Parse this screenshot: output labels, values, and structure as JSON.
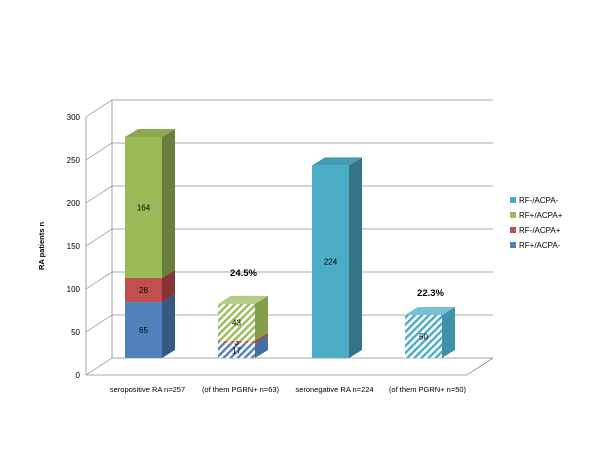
{
  "chart_data": {
    "type": "bar",
    "stacked": true,
    "style": "3d",
    "title": "",
    "xlabel": "",
    "ylabel": "RA patients  n",
    "ylim": [
      0,
      300
    ],
    "yticks": [
      "0",
      "50",
      "100",
      "150",
      "200",
      "250",
      "300"
    ],
    "grid": true,
    "legend_position": "right",
    "categories": [
      "seropositive RA n=257",
      "(of them PGRN+ n=63)",
      "seronegative RA n=224",
      "(of them PGRN+ n=50)"
    ],
    "series": [
      {
        "name": "RF+/ACPA-",
        "color": "#4f81bd",
        "values": [
          65,
          17,
          0,
          0
        ],
        "labels": [
          "65",
          "17",
          "",
          ""
        ]
      },
      {
        "name": "RF-/ACPA+",
        "color": "#c0504d",
        "values": [
          28,
          3,
          0,
          0
        ],
        "labels": [
          "28",
          "3",
          "",
          ""
        ]
      },
      {
        "name": "RF+/ACPA+",
        "color": "#9bbb59",
        "values": [
          164,
          43,
          0,
          0
        ],
        "labels": [
          "164",
          "43",
          "",
          ""
        ]
      },
      {
        "name": "RF-/ACPA-",
        "color": "#4bacc6",
        "values": [
          0,
          0,
          224,
          50
        ],
        "labels": [
          "",
          "",
          "224",
          "50"
        ]
      }
    ],
    "hatched_categories": [
      1,
      3
    ],
    "annotations": [
      {
        "category": 1,
        "text": "24.5%"
      },
      {
        "category": 3,
        "text": "22.3%"
      }
    ],
    "legend": [
      "RF-/ACPA-",
      "RF+/ACPA+",
      "RF-/ACPA+",
      "RF+/ACPA-"
    ]
  }
}
